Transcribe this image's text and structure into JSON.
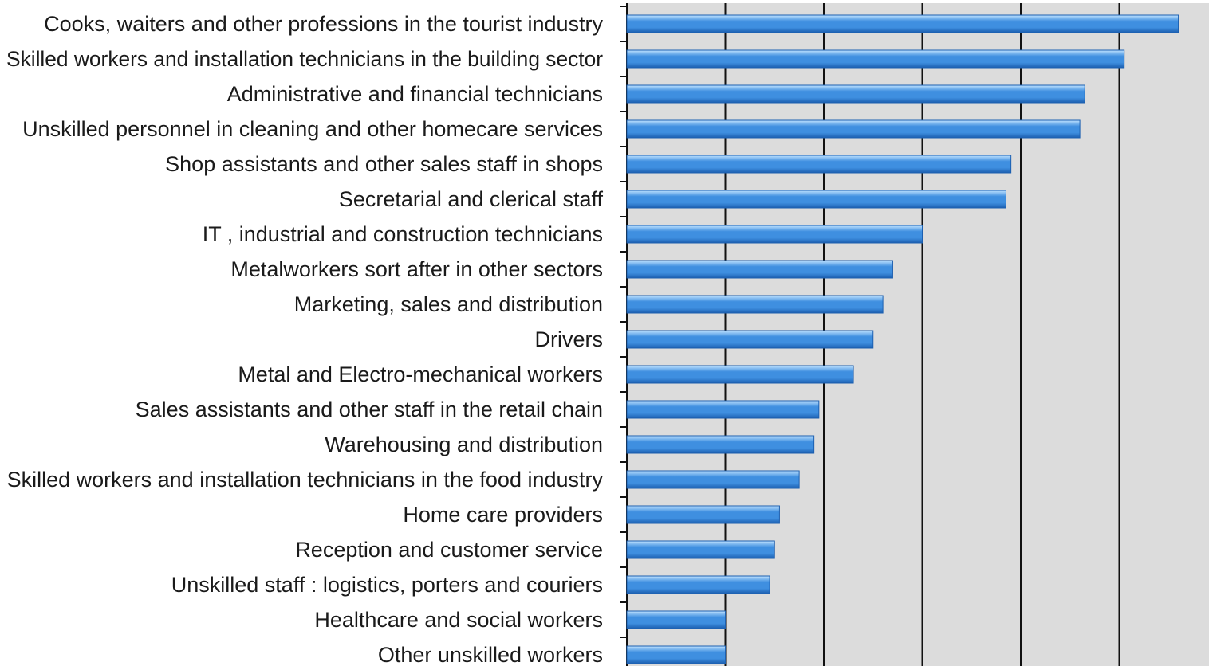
{
  "colors": {
    "plot_background": "#dcdcdc",
    "grid": "#111111",
    "bar_main": "#3f8fe0",
    "bar_highlight": "#bfe2ff",
    "bar_shadow": "#1c5fb0",
    "label_text": "#1a1a1a"
  },
  "chart_data": {
    "type": "bar",
    "orientation": "horizontal",
    "title": "",
    "xlabel": "",
    "ylabel": "",
    "grid": true,
    "xlim": [
      0,
      5.6
    ],
    "x_gridlines": [
      1,
      2,
      3,
      4,
      5
    ],
    "categories": [
      "Cooks, waiters and other professions in the tourist industry",
      "Skilled workers and installation technicians in the building sector",
      "Administrative and financial technicians",
      "Unskilled personnel  in cleaning and other homecare services",
      "Shop assistants and other sales staff in shops",
      "Secretarial and clerical staff",
      "IT , industrial and construction technicians",
      "Metalworkers sort after in other sectors",
      "Marketing, sales and distribution",
      "Drivers",
      "Metal and Electro-mechanical workers",
      "Sales assistants and other staff in the retail chain",
      "Warehousing and distribution",
      "Skilled workers and installation technicians in the food industry",
      "Home care providers",
      "Reception and customer service",
      "Unskilled staff : logistics, porters and couriers",
      "Healthcare and social workers",
      "Other unskilled workers"
    ],
    "values": [
      5.6,
      5.05,
      4.65,
      4.6,
      3.9,
      3.85,
      3.0,
      2.7,
      2.6,
      2.5,
      2.3,
      1.95,
      1.9,
      1.75,
      1.55,
      1.5,
      1.45,
      1.0,
      1.0
    ]
  }
}
